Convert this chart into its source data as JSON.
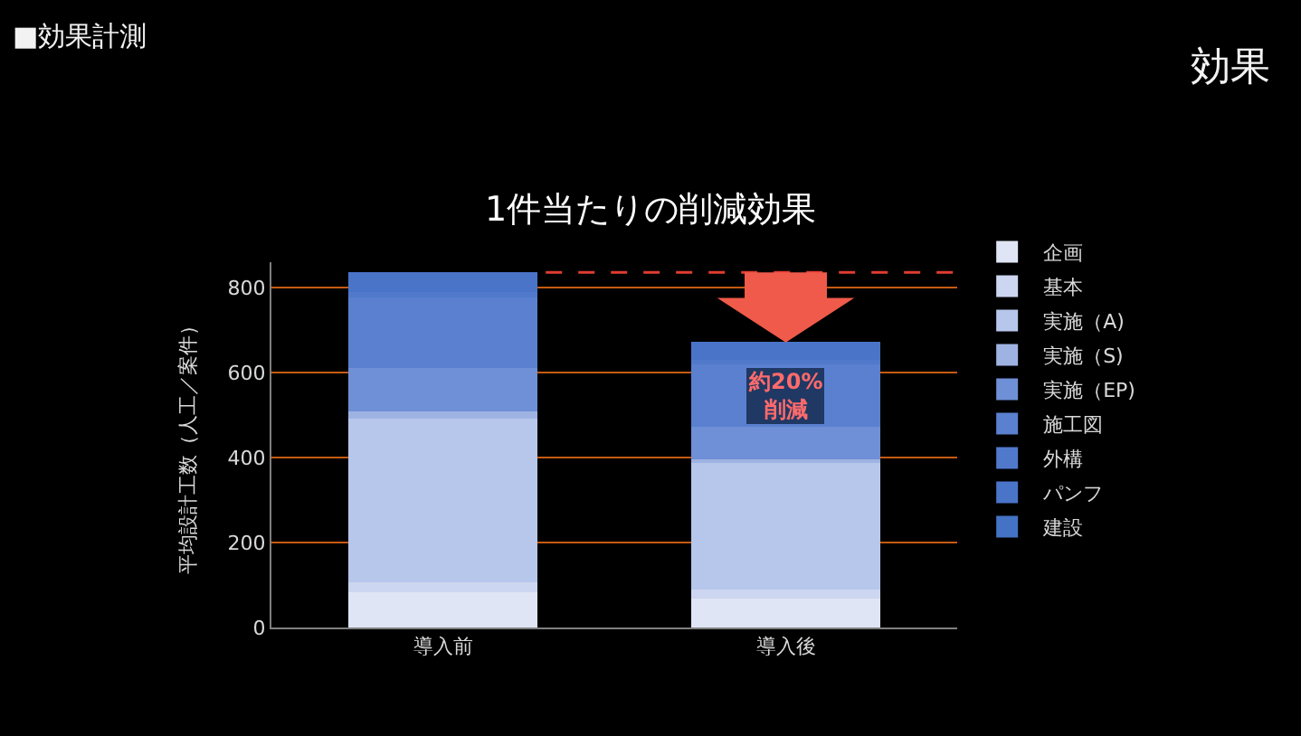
{
  "chart_data": {
    "type": "bar",
    "stacked": true,
    "title": "1件当たりの削減効果",
    "ylabel": "平均設計工数（人工／案件）",
    "categories": [
      "導入前",
      "導入後"
    ],
    "series": [
      {
        "name": "企画",
        "color": "#dfe5f5",
        "values": [
          82,
          69
        ]
      },
      {
        "name": "基本",
        "color": "#ccd6f0",
        "values": [
          25,
          21
        ]
      },
      {
        "name": "実施（A)",
        "color": "#b7c6eb",
        "values": [
          385,
          300
        ]
      },
      {
        "name": "実施（S)",
        "color": "#9fb3e3",
        "values": [
          16,
          7
        ]
      },
      {
        "name": "実施（EP)",
        "color": "#6f8fd6",
        "values": [
          102,
          75
        ]
      },
      {
        "name": "施工図",
        "color": "#5a80cf",
        "values": [
          168,
          148
        ]
      },
      {
        "name": "外構",
        "color": "#5079cb",
        "values": [
          12,
          11
        ]
      },
      {
        "name": "パンフ",
        "color": "#4a74c8",
        "values": [
          46,
          41
        ]
      },
      {
        "name": "建設",
        "color": "#4472c4",
        "values": [
          0,
          0
        ]
      }
    ],
    "ylim": [
      0,
      860
    ],
    "yticks": [
      0,
      200,
      400,
      600,
      800
    ],
    "grid": "y",
    "legend": "right",
    "ref_lines": [
      {
        "axis": "y",
        "value": 836,
        "color": "#e03c31",
        "line_style": "dashed"
      }
    ],
    "annotations": [
      "■効果計測",
      "効果",
      "約20%\n削減"
    ]
  }
}
